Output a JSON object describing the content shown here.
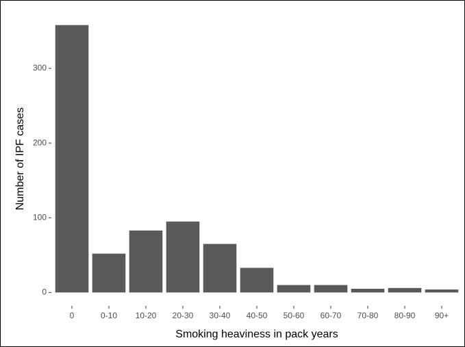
{
  "chart_data": {
    "type": "bar",
    "x_label": "Smoking heaviness in pack years",
    "y_label": "Number of IPF cases",
    "categories": [
      "0",
      "0-10",
      "10-20",
      "20-30",
      "30-40",
      "40-50",
      "50-60",
      "60-70",
      "70-80",
      "80-90",
      "90+"
    ],
    "values": [
      358,
      52,
      83,
      95,
      65,
      33,
      10,
      10,
      5,
      6,
      4
    ],
    "color": "#595959",
    "ylim": [
      -18,
      376
    ],
    "yticks": [
      0,
      100,
      200,
      300
    ]
  }
}
